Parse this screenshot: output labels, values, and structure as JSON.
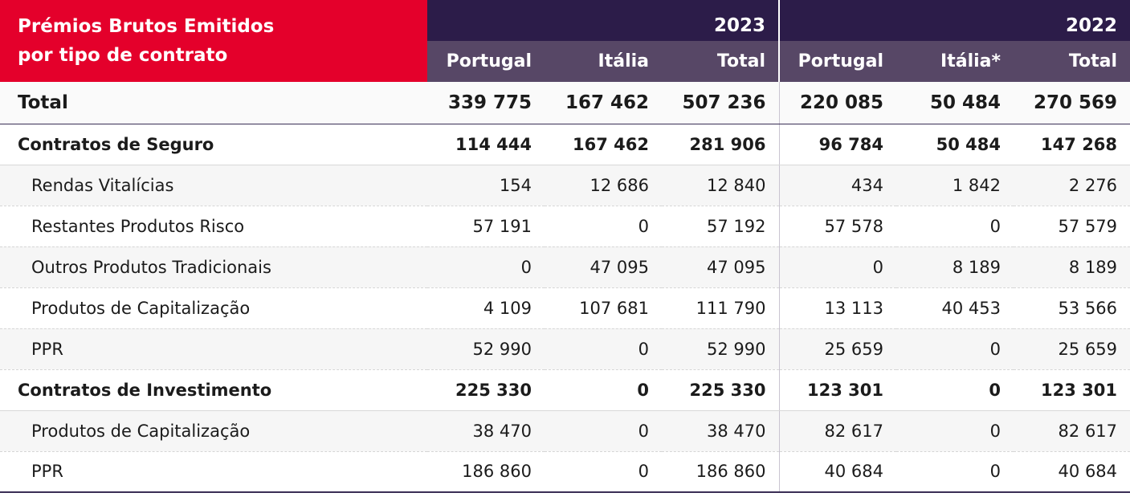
{
  "header": {
    "title_line1": "Prémios Brutos Emitidos",
    "title_line2": "por tipo de contrato",
    "year_2023": "2023",
    "year_2022": "2022",
    "columns": [
      "Portugal",
      "Itália",
      "Total",
      "Portugal",
      "Itália*",
      "Total"
    ]
  },
  "rows": [
    {
      "label": "Total",
      "values": [
        "339 775",
        "167 462",
        "507 236",
        "220 085",
        "50 484",
        "270 569"
      ]
    },
    {
      "label": "Contratos de Seguro",
      "values": [
        "114 444",
        "167 462",
        "281 906",
        "96 784",
        "50 484",
        "147 268"
      ]
    },
    {
      "label": "Rendas Vitalícias",
      "values": [
        "154",
        "12 686",
        "12 840",
        "434",
        "1 842",
        "2 276"
      ]
    },
    {
      "label": "Restantes Produtos Risco",
      "values": [
        "57 191",
        "0",
        "57 192",
        "57 578",
        "0",
        "57 579"
      ]
    },
    {
      "label": "Outros Produtos Tradicionais",
      "values": [
        "0",
        "47 095",
        "47 095",
        "0",
        "8 189",
        "8 189"
      ]
    },
    {
      "label": "Produtos de Capitalização",
      "values": [
        "4 109",
        "107 681",
        "111 790",
        "13 113",
        "40 453",
        "53 566"
      ]
    },
    {
      "label": "PPR",
      "values": [
        "52 990",
        "0",
        "52 990",
        "25 659",
        "0",
        "25 659"
      ]
    },
    {
      "label": "Contratos de Investimento",
      "values": [
        "225 330",
        "0",
        "225 330",
        "123 301",
        "0",
        "123 301"
      ]
    },
    {
      "label": "Produtos de Capitalização",
      "values": [
        "38 470",
        "0",
        "38 470",
        "82 617",
        "0",
        "82 617"
      ]
    },
    {
      "label": "PPR",
      "values": [
        "186 860",
        "0",
        "186 860",
        "40 684",
        "0",
        "40 684"
      ]
    }
  ]
}
